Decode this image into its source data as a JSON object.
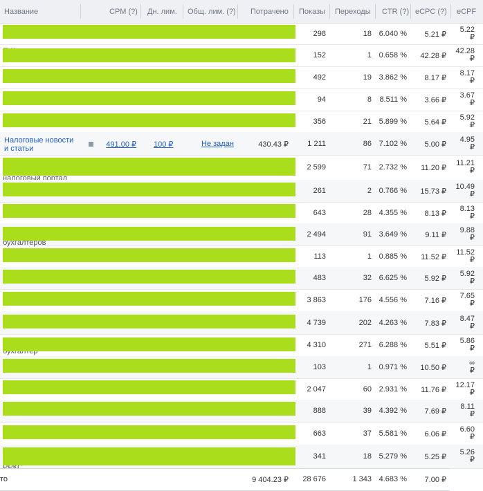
{
  "header": {
    "name": "Название",
    "cpm": "CPM (?)",
    "day_limit": "Дн. лим.",
    "total_limit": "Общ. лим. (?)",
    "spent": "Потрачено",
    "impressions": "Показы",
    "clicks": "Переходы",
    "ctr": "CTR (?)",
    "ecpc": "eCPC (?)",
    "ecpf": "eCPF"
  },
  "rows": [
    {
      "impressions": "298",
      "clicks": "18",
      "ctr": "6.040 %",
      "ecpc": "5.21 ₽",
      "ecpf_value": "5.22",
      "ecpf_currency": "₽",
      "ghost": ""
    },
    {
      "impressions": "152",
      "clicks": "1",
      "ctr": "0.658 %",
      "ecpc": "42.28 ₽",
      "ecpf_value": "42.28",
      "ecpf_currency": "₽",
      "ghost": "П                  И"
    },
    {
      "impressions": "492",
      "clicks": "19",
      "ctr": "3.862 %",
      "ecpc": "8.17 ₽",
      "ecpf_value": "8.17",
      "ecpf_currency": "₽",
      "ghost": ""
    },
    {
      "impressions": "94",
      "clicks": "8",
      "ctr": "8.511 %",
      "ecpc": "3.66 ₽",
      "ecpf_value": "3.67",
      "ecpf_currency": "₽",
      "ghost": ""
    },
    {
      "impressions": "356",
      "clicks": "21",
      "ctr": "5.899 %",
      "ecpc": "5.64 ₽",
      "ecpf_value": "5.92",
      "ecpf_currency": "₽",
      "ghost": ""
    },
    {
      "name_line1": "Налоговые новости",
      "name_line2": "и статьи",
      "cpm": "491.00 ₽",
      "day_limit": "100 ₽",
      "total_limit": "Не задан",
      "spent": "430.43 ₽",
      "impressions": "1 211",
      "clicks": "86",
      "ctr": "7.102 %",
      "ecpc": "5.00 ₽",
      "ecpf_value": "4.95",
      "ecpf_currency": "₽"
    },
    {
      "impressions": "2 599",
      "clicks": "71",
      "ctr": "2.732 %",
      "ecpc": "11.20 ₽",
      "ecpf_value": "11.21",
      "ecpf_currency": "₽",
      "ghost": "налоговый портал"
    },
    {
      "impressions": "261",
      "clicks": "2",
      "ctr": "0.766 %",
      "ecpc": "15.73 ₽",
      "ecpf_value": "10.49",
      "ecpf_currency": "₽",
      "ghost": ""
    },
    {
      "impressions": "643",
      "clicks": "28",
      "ctr": "4.355 %",
      "ecpc": "8.13 ₽",
      "ecpf_value": "8.13",
      "ecpf_currency": "₽",
      "ghost": ""
    },
    {
      "impressions": "2 494",
      "clicks": "91",
      "ctr": "3.649 %",
      "ecpc": "9.11 ₽",
      "ecpf_value": "9.88",
      "ecpf_currency": "₽",
      "ghost": "бухгалтеров"
    },
    {
      "impressions": "113",
      "clicks": "1",
      "ctr": "0.885 %",
      "ecpc": "11.52 ₽",
      "ecpf_value": "11.52",
      "ecpf_currency": "₽",
      "ghost": ""
    },
    {
      "impressions": "483",
      "clicks": "32",
      "ctr": "6.625 %",
      "ecpc": "5.92 ₽",
      "ecpf_value": "5.92",
      "ecpf_currency": "₽",
      "ghost": ""
    },
    {
      "impressions": "3 863",
      "clicks": "176",
      "ctr": "4.556 %",
      "ecpc": "7.16 ₽",
      "ecpf_value": "7.65",
      "ecpf_currency": "₽",
      "ghost": ""
    },
    {
      "impressions": "4 739",
      "clicks": "202",
      "ctr": "4.263 %",
      "ecpc": "7.83 ₽",
      "ecpf_value": "8.47",
      "ecpf_currency": "₽",
      "ghost": ""
    },
    {
      "impressions": "4 310",
      "clicks": "271",
      "ctr": "6.288 %",
      "ecpc": "5.51 ₽",
      "ecpf_value": "5.86",
      "ecpf_currency": "₽",
      "ghost": "бухгалтер"
    },
    {
      "impressions": "103",
      "clicks": "1",
      "ctr": "0.971 %",
      "ecpc": "10.50 ₽",
      "ecpf_value": "∞",
      "ecpf_currency": "₽",
      "ghost": ""
    },
    {
      "impressions": "2 047",
      "clicks": "60",
      "ctr": "2.931 %",
      "ecpc": "11.76 ₽",
      "ecpf_value": "12.17",
      "ecpf_currency": "₽",
      "ghost": ""
    },
    {
      "impressions": "888",
      "clicks": "39",
      "ctr": "4.392 %",
      "ecpc": "7.69 ₽",
      "ecpf_value": "8.11",
      "ecpf_currency": "₽",
      "ghost": ""
    },
    {
      "impressions": "663",
      "clicks": "37",
      "ctr": "5.581 %",
      "ecpc": "6.06 ₽",
      "ecpf_value": "6.60",
      "ecpf_currency": "₽",
      "ghost": ""
    },
    {
      "impressions": "341",
      "clicks": "18",
      "ctr": "5.279 %",
      "ecpc": "5.25 ₽",
      "ecpf_value": "5.26",
      "ecpf_currency": "₽",
      "ghost": "РРКС"
    }
  ],
  "total": {
    "label": "то",
    "spent": "9 404.23 ₽",
    "impressions": "28 676",
    "clicks": "1 343",
    "ctr": "4.683 %",
    "ecpc": "7.00 ₽"
  },
  "colors": {
    "redaction": "#aadd1b",
    "link": "#1d5bc7",
    "header_bg": "#eef0f3"
  },
  "icons": {
    "row_status": "square-status-icon"
  }
}
